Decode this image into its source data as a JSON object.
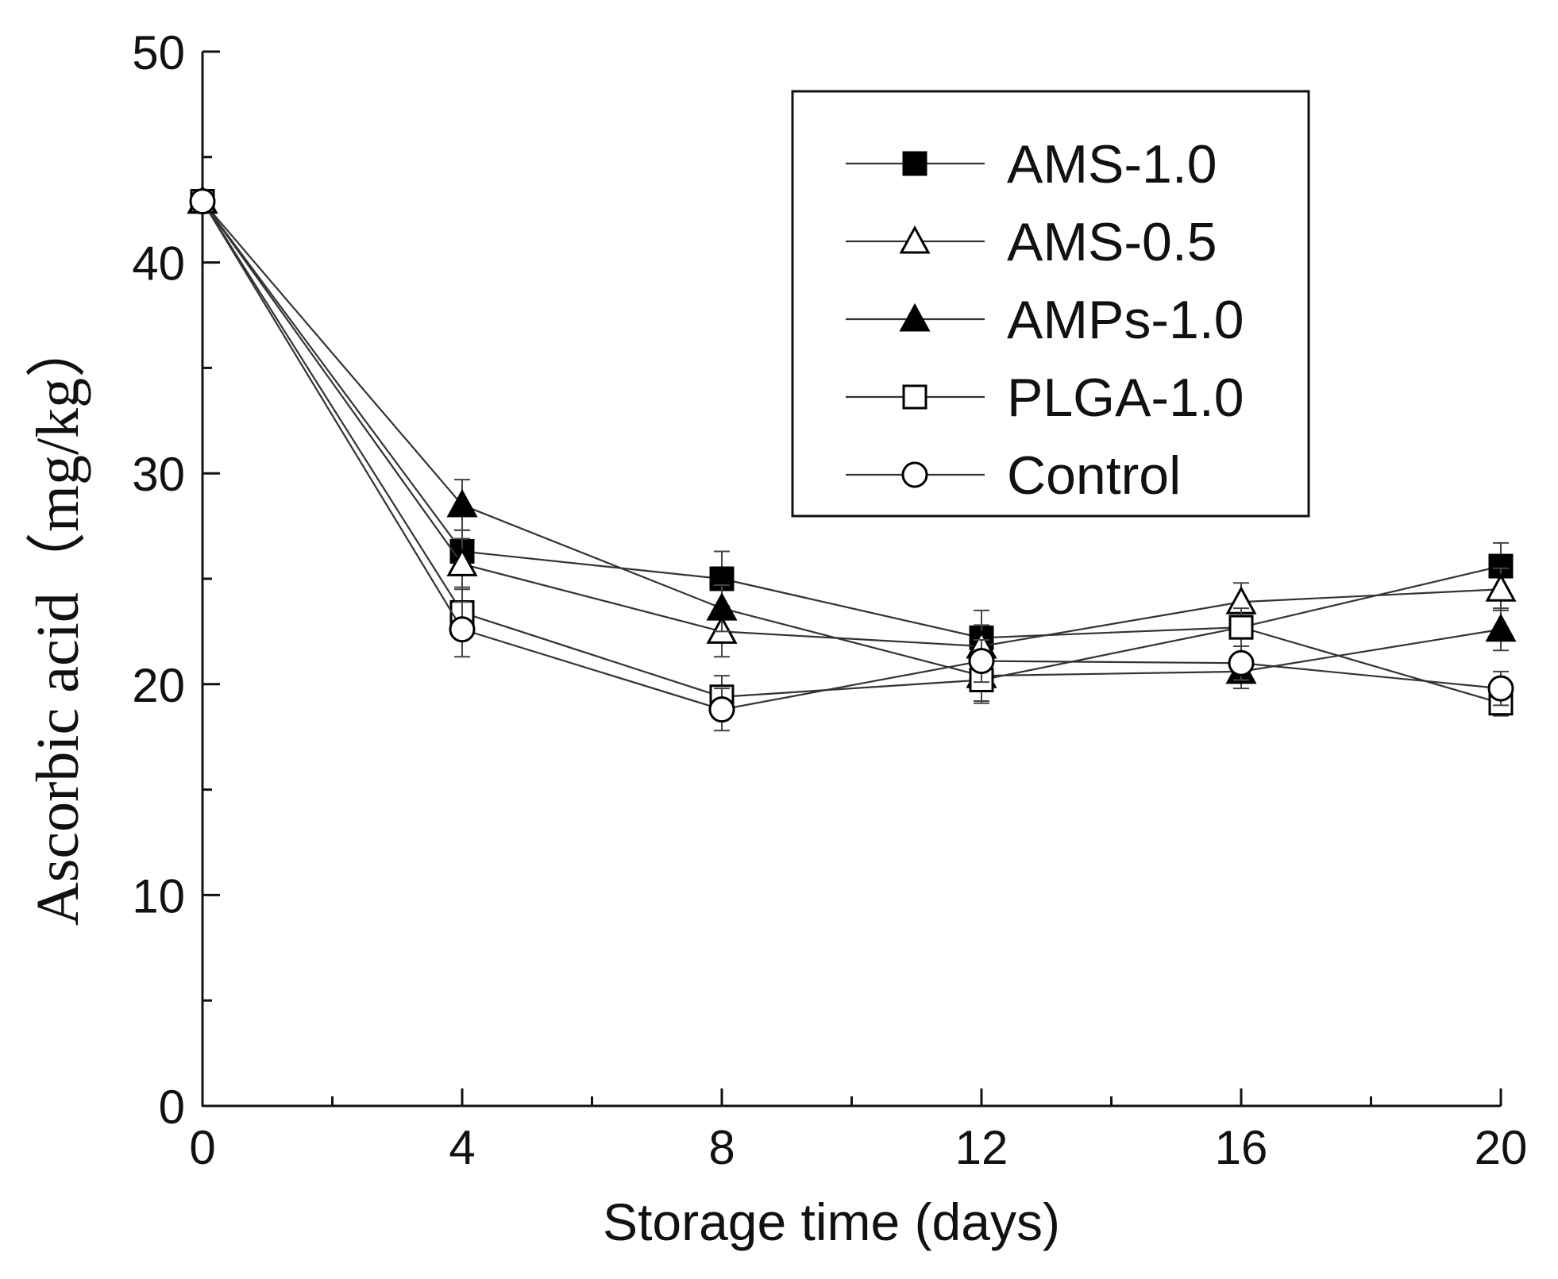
{
  "chart_data": {
    "type": "line",
    "title": "",
    "xlabel": "Storage time (days)",
    "ylabel": "Ascorbic acid（mg/kg）",
    "x": [
      0,
      4,
      8,
      12,
      16,
      20
    ],
    "xticks": [
      "0",
      "4",
      "8",
      "12",
      "16",
      "20"
    ],
    "yticks": [
      "0",
      "10",
      "20",
      "30",
      "40",
      "50"
    ],
    "xlim": [
      0,
      20
    ],
    "ylim": [
      0,
      50
    ],
    "grid": false,
    "legend_position": "top-right",
    "series": [
      {
        "name": "AMS-1.0",
        "marker": "filled-square",
        "values": [
          42.9,
          26.3,
          25.0,
          22.2,
          22.7,
          25.6
        ],
        "errors": [
          0.4,
          1.0,
          1.3,
          1.3,
          0.9,
          1.1
        ]
      },
      {
        "name": "AMS-0.5",
        "marker": "open-triangle",
        "values": [
          42.9,
          25.7,
          22.5,
          21.8,
          23.9,
          24.5
        ],
        "errors": [
          0.4,
          1.2,
          1.2,
          1.0,
          0.9,
          1.0
        ]
      },
      {
        "name": "AMPs-1.0",
        "marker": "filled-triangle",
        "values": [
          42.9,
          28.5,
          23.6,
          20.4,
          20.6,
          22.6
        ],
        "errors": [
          0.4,
          1.2,
          1.1,
          1.2,
          0.8,
          1.0
        ]
      },
      {
        "name": "PLGA-1.0",
        "marker": "open-square",
        "values": [
          42.9,
          23.4,
          19.4,
          20.2,
          22.7,
          19.1
        ],
        "errors": [
          0.4,
          1.2,
          1.0,
          1.1,
          0.9,
          0.6
        ]
      },
      {
        "name": "Control",
        "marker": "open-circle",
        "values": [
          42.9,
          22.6,
          18.8,
          21.1,
          21.0,
          19.8
        ],
        "errors": [
          0.4,
          1.3,
          1.0,
          1.0,
          0.8,
          0.8
        ]
      }
    ]
  }
}
